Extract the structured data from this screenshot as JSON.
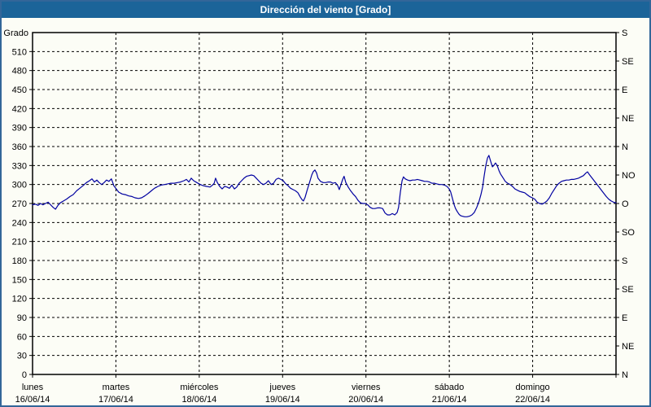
{
  "window": {
    "title": "Dirección del viento [Grado]",
    "titlebar_color": "#1b6499",
    "border_color": "#336699",
    "background_color": "#fcfdf6"
  },
  "chart_data": {
    "type": "line",
    "title": "Dirección del viento [Grado]",
    "ylabel": "Grado",
    "y_range": [
      0,
      540
    ],
    "y_tick_step": 30,
    "left_tick_values": [
      0,
      30,
      60,
      90,
      120,
      150,
      180,
      210,
      240,
      270,
      300,
      330,
      360,
      390,
      420,
      450,
      480,
      510
    ],
    "right_ticks": [
      {
        "deg": 540,
        "label": "S"
      },
      {
        "deg": 495,
        "label": "SE"
      },
      {
        "deg": 450,
        "label": "E"
      },
      {
        "deg": 405,
        "label": "NE"
      },
      {
        "deg": 360,
        "label": "N"
      },
      {
        "deg": 315,
        "label": "NO"
      },
      {
        "deg": 270,
        "label": "O"
      },
      {
        "deg": 225,
        "label": "SO"
      },
      {
        "deg": 180,
        "label": "S"
      },
      {
        "deg": 135,
        "label": "SE"
      },
      {
        "deg": 90,
        "label": "E"
      },
      {
        "deg": 45,
        "label": "NE"
      },
      {
        "deg": 0,
        "label": "N"
      }
    ],
    "x_range_hours": [
      0,
      168
    ],
    "days": [
      {
        "name": "lunes",
        "date": "16/06/14",
        "hour": 0
      },
      {
        "name": "martes",
        "date": "17/06/14",
        "hour": 24
      },
      {
        "name": "miércoles",
        "date": "18/06/14",
        "hour": 48
      },
      {
        "name": "jueves",
        "date": "19/06/14",
        "hour": 72
      },
      {
        "name": "viernes",
        "date": "20/06/14",
        "hour": 96
      },
      {
        "name": "sábado",
        "date": "21/06/14",
        "hour": 120
      },
      {
        "name": "domingo",
        "date": "22/06/14",
        "hour": 144
      }
    ],
    "grid": true,
    "legend": "none",
    "line_color": "#0000a0",
    "series": [
      {
        "name": "Dirección del viento",
        "x_hours": [
          0,
          0.9,
          1.6,
          2.3,
          3,
          3.7,
          4.5,
          5.2,
          5.9,
          6.6,
          7.3,
          8,
          8.9,
          9.8,
          10.8,
          11.7,
          12.7,
          13.6,
          14.5,
          15.5,
          16.4,
          17.1,
          17.8,
          18.5,
          19.2,
          19.9,
          20.6,
          21.3,
          22,
          22.7,
          23.4,
          24.1,
          24.8,
          25.8,
          26.7,
          27.7,
          28.6,
          29.5,
          30.5,
          31.4,
          32.3,
          33.3,
          34.2,
          35.1,
          36.1,
          37,
          38,
          38.9,
          39.8,
          40.8,
          41.7,
          42.6,
          43.6,
          44.3,
          45,
          45.7,
          46.4,
          47.3,
          48.3,
          49.2,
          50.1,
          51.1,
          51.8,
          52.3,
          52.7,
          53.2,
          53.9,
          54.6,
          55.3,
          56,
          56.7,
          57.4,
          58.1,
          58.8,
          59.5,
          60.2,
          60.9,
          61.6,
          62.3,
          63,
          63.7,
          64.4,
          65.1,
          65.8,
          66.5,
          67.2,
          67.9,
          68.7,
          69.4,
          70.1,
          70.8,
          71.5,
          72.2,
          72.9,
          73.6,
          74.3,
          75,
          75.7,
          76.4,
          77.1,
          77.6,
          78,
          78.5,
          79,
          79.7,
          80.4,
          80.8,
          81.3,
          81.8,
          82.2,
          82.9,
          83.7,
          84.4,
          85.1,
          85.8,
          86.5,
          87.2,
          87.9,
          88.3,
          88.8,
          89.3,
          89.7,
          90.2,
          90.9,
          91.6,
          92.3,
          93,
          93.7,
          94.4,
          95.1,
          95.8,
          96.5,
          97.2,
          97.9,
          98.6,
          99.3,
          100.1,
          100.8,
          101.5,
          102.2,
          102.9,
          103.6,
          104.3,
          105,
          105.4,
          105.9,
          106.4,
          106.8,
          107.3,
          108,
          108.7,
          109.4,
          110.1,
          110.8,
          111.5,
          112.2,
          112.9,
          113.6,
          114.3,
          115,
          115.7,
          116.4,
          117.2,
          117.9,
          118.6,
          119.3,
          120,
          120.4,
          120.9,
          121.4,
          121.8,
          122.3,
          122.8,
          123.2,
          123.7,
          124.4,
          125.1,
          125.8,
          126.5,
          127.2,
          127.9,
          128.6,
          129.1,
          129.6,
          130,
          130.5,
          131,
          131.4,
          131.9,
          132.4,
          132.8,
          133.3,
          133.8,
          134.3,
          134.7,
          135.4,
          136.1,
          136.8,
          137.5,
          138.2,
          138.9,
          139.6,
          140.3,
          141,
          141.7,
          142.4,
          143.1,
          143.9,
          144.6,
          145.3,
          146,
          146.7,
          147.4,
          148.1,
          148.8,
          149.5,
          150.2,
          150.9,
          151.6,
          152.3,
          153,
          153.7,
          154.4,
          155.1,
          155.8,
          156.5,
          157.2,
          157.9,
          158.6,
          159.3,
          159.8,
          160.3,
          161,
          161.7,
          162.4,
          163.1,
          163.8,
          164.5,
          165.2,
          165.9,
          166.6,
          167.3,
          168
        ],
        "values": [
          268,
          269,
          267,
          270,
          268,
          270,
          272,
          268,
          264,
          261,
          267,
          271,
          274,
          277,
          281,
          284,
          290,
          294,
          298,
          303,
          306,
          309,
          304,
          307,
          303,
          300,
          303,
          307,
          305,
          309,
          298,
          293,
          288,
          285,
          284,
          282,
          281,
          279,
          278,
          279,
          282,
          286,
          290,
          294,
          297,
          299,
          300,
          301,
          302,
          302,
          303,
          304,
          306,
          308,
          304,
          310,
          306,
          303,
          300,
          298,
          297,
          296,
          299,
          302,
          310,
          303,
          297,
          293,
          297,
          296,
          294,
          299,
          293,
          296,
          302,
          306,
          310,
          313,
          314,
          315,
          314,
          310,
          306,
          302,
          300,
          302,
          306,
          300,
          302,
          308,
          310,
          308,
          306,
          301,
          298,
          294,
          292,
          290,
          287,
          280,
          276,
          274,
          280,
          290,
          302,
          315,
          320,
          323,
          318,
          310,
          305,
          303,
          303,
          304,
          304,
          302,
          303,
          298,
          292,
          300,
          308,
          313,
          303,
          296,
          290,
          285,
          281,
          275,
          271,
          270,
          270,
          268,
          264,
          262,
          262,
          263,
          263,
          262,
          255,
          252,
          252,
          254,
          252,
          256,
          264,
          288,
          306,
          312,
          309,
          307,
          306,
          307,
          307,
          308,
          307,
          306,
          305,
          305,
          304,
          302,
          302,
          301,
          300,
          300,
          299,
          297,
          293,
          288,
          278,
          268,
          262,
          257,
          253,
          251,
          250,
          249,
          249,
          250,
          252,
          256,
          264,
          274,
          284,
          296,
          312,
          330,
          342,
          346,
          337,
          328,
          330,
          334,
          330,
          322,
          317,
          311,
          305,
          302,
          300,
          297,
          293,
          291,
          289,
          288,
          287,
          284,
          281,
          279,
          277,
          272,
          270,
          269,
          271,
          274,
          279,
          286,
          292,
          298,
          302,
          305,
          306,
          307,
          307,
          308,
          308,
          309,
          310,
          312,
          314,
          318,
          320,
          316,
          311,
          306,
          301,
          296,
          291,
          286,
          281,
          277,
          274,
          272,
          271
        ]
      }
    ]
  }
}
